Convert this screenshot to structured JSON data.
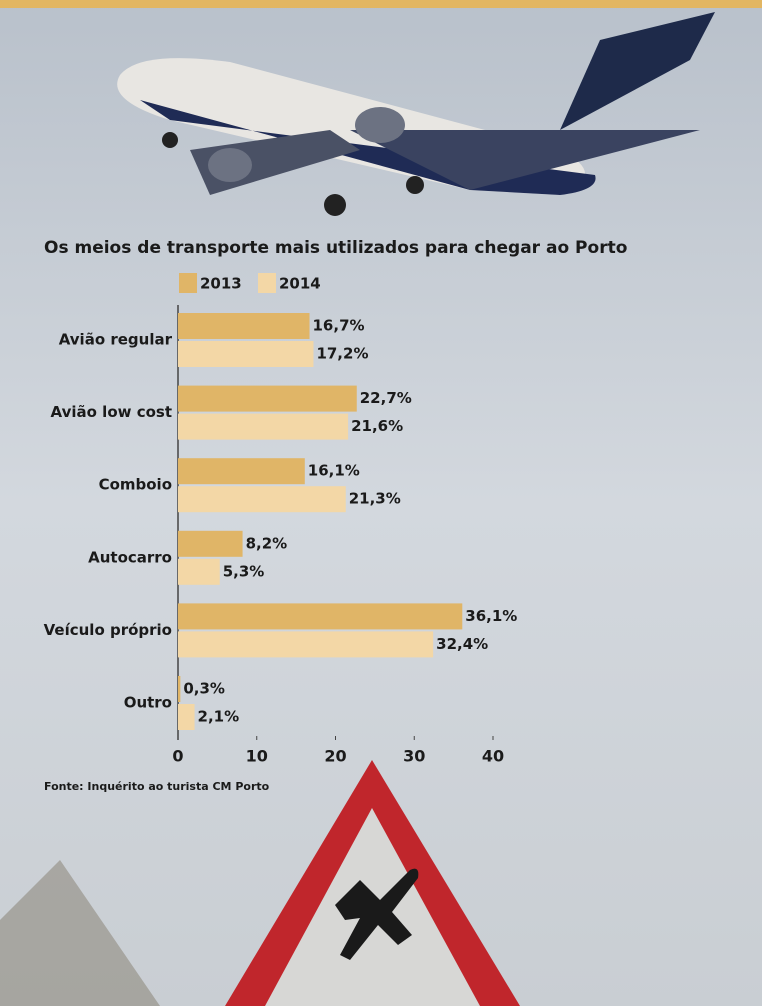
{
  "chart_data": {
    "type": "bar",
    "orientation": "horizontal",
    "title": "Os meios de transporte mais utilizados para chegar ao Porto",
    "categories": [
      "Avião regular",
      "Avião low cost",
      "Comboio",
      "Autocarro",
      "Veículo próprio",
      "Outro"
    ],
    "series": [
      {
        "name": "2013",
        "color": "#e0b567",
        "values": [
          16.7,
          22.7,
          16.1,
          8.2,
          36.1,
          0.3
        ],
        "value_labels": [
          "16,7%",
          "22,7%",
          "16,1%",
          "8,2%",
          "36,1%",
          "0,3%"
        ]
      },
      {
        "name": "2014",
        "color": "#f3d7a6",
        "values": [
          17.2,
          21.6,
          21.3,
          5.3,
          32.4,
          2.1
        ],
        "value_labels": [
          "17,2%",
          "21,6%",
          "21,3%",
          "5,3%",
          "32,4%",
          "2,1%"
        ]
      }
    ],
    "xlim": [
      0,
      40
    ],
    "xticks": [
      0,
      10,
      20,
      30,
      40
    ],
    "source": "Fonte: Inquérito ao turista CM Porto"
  }
}
